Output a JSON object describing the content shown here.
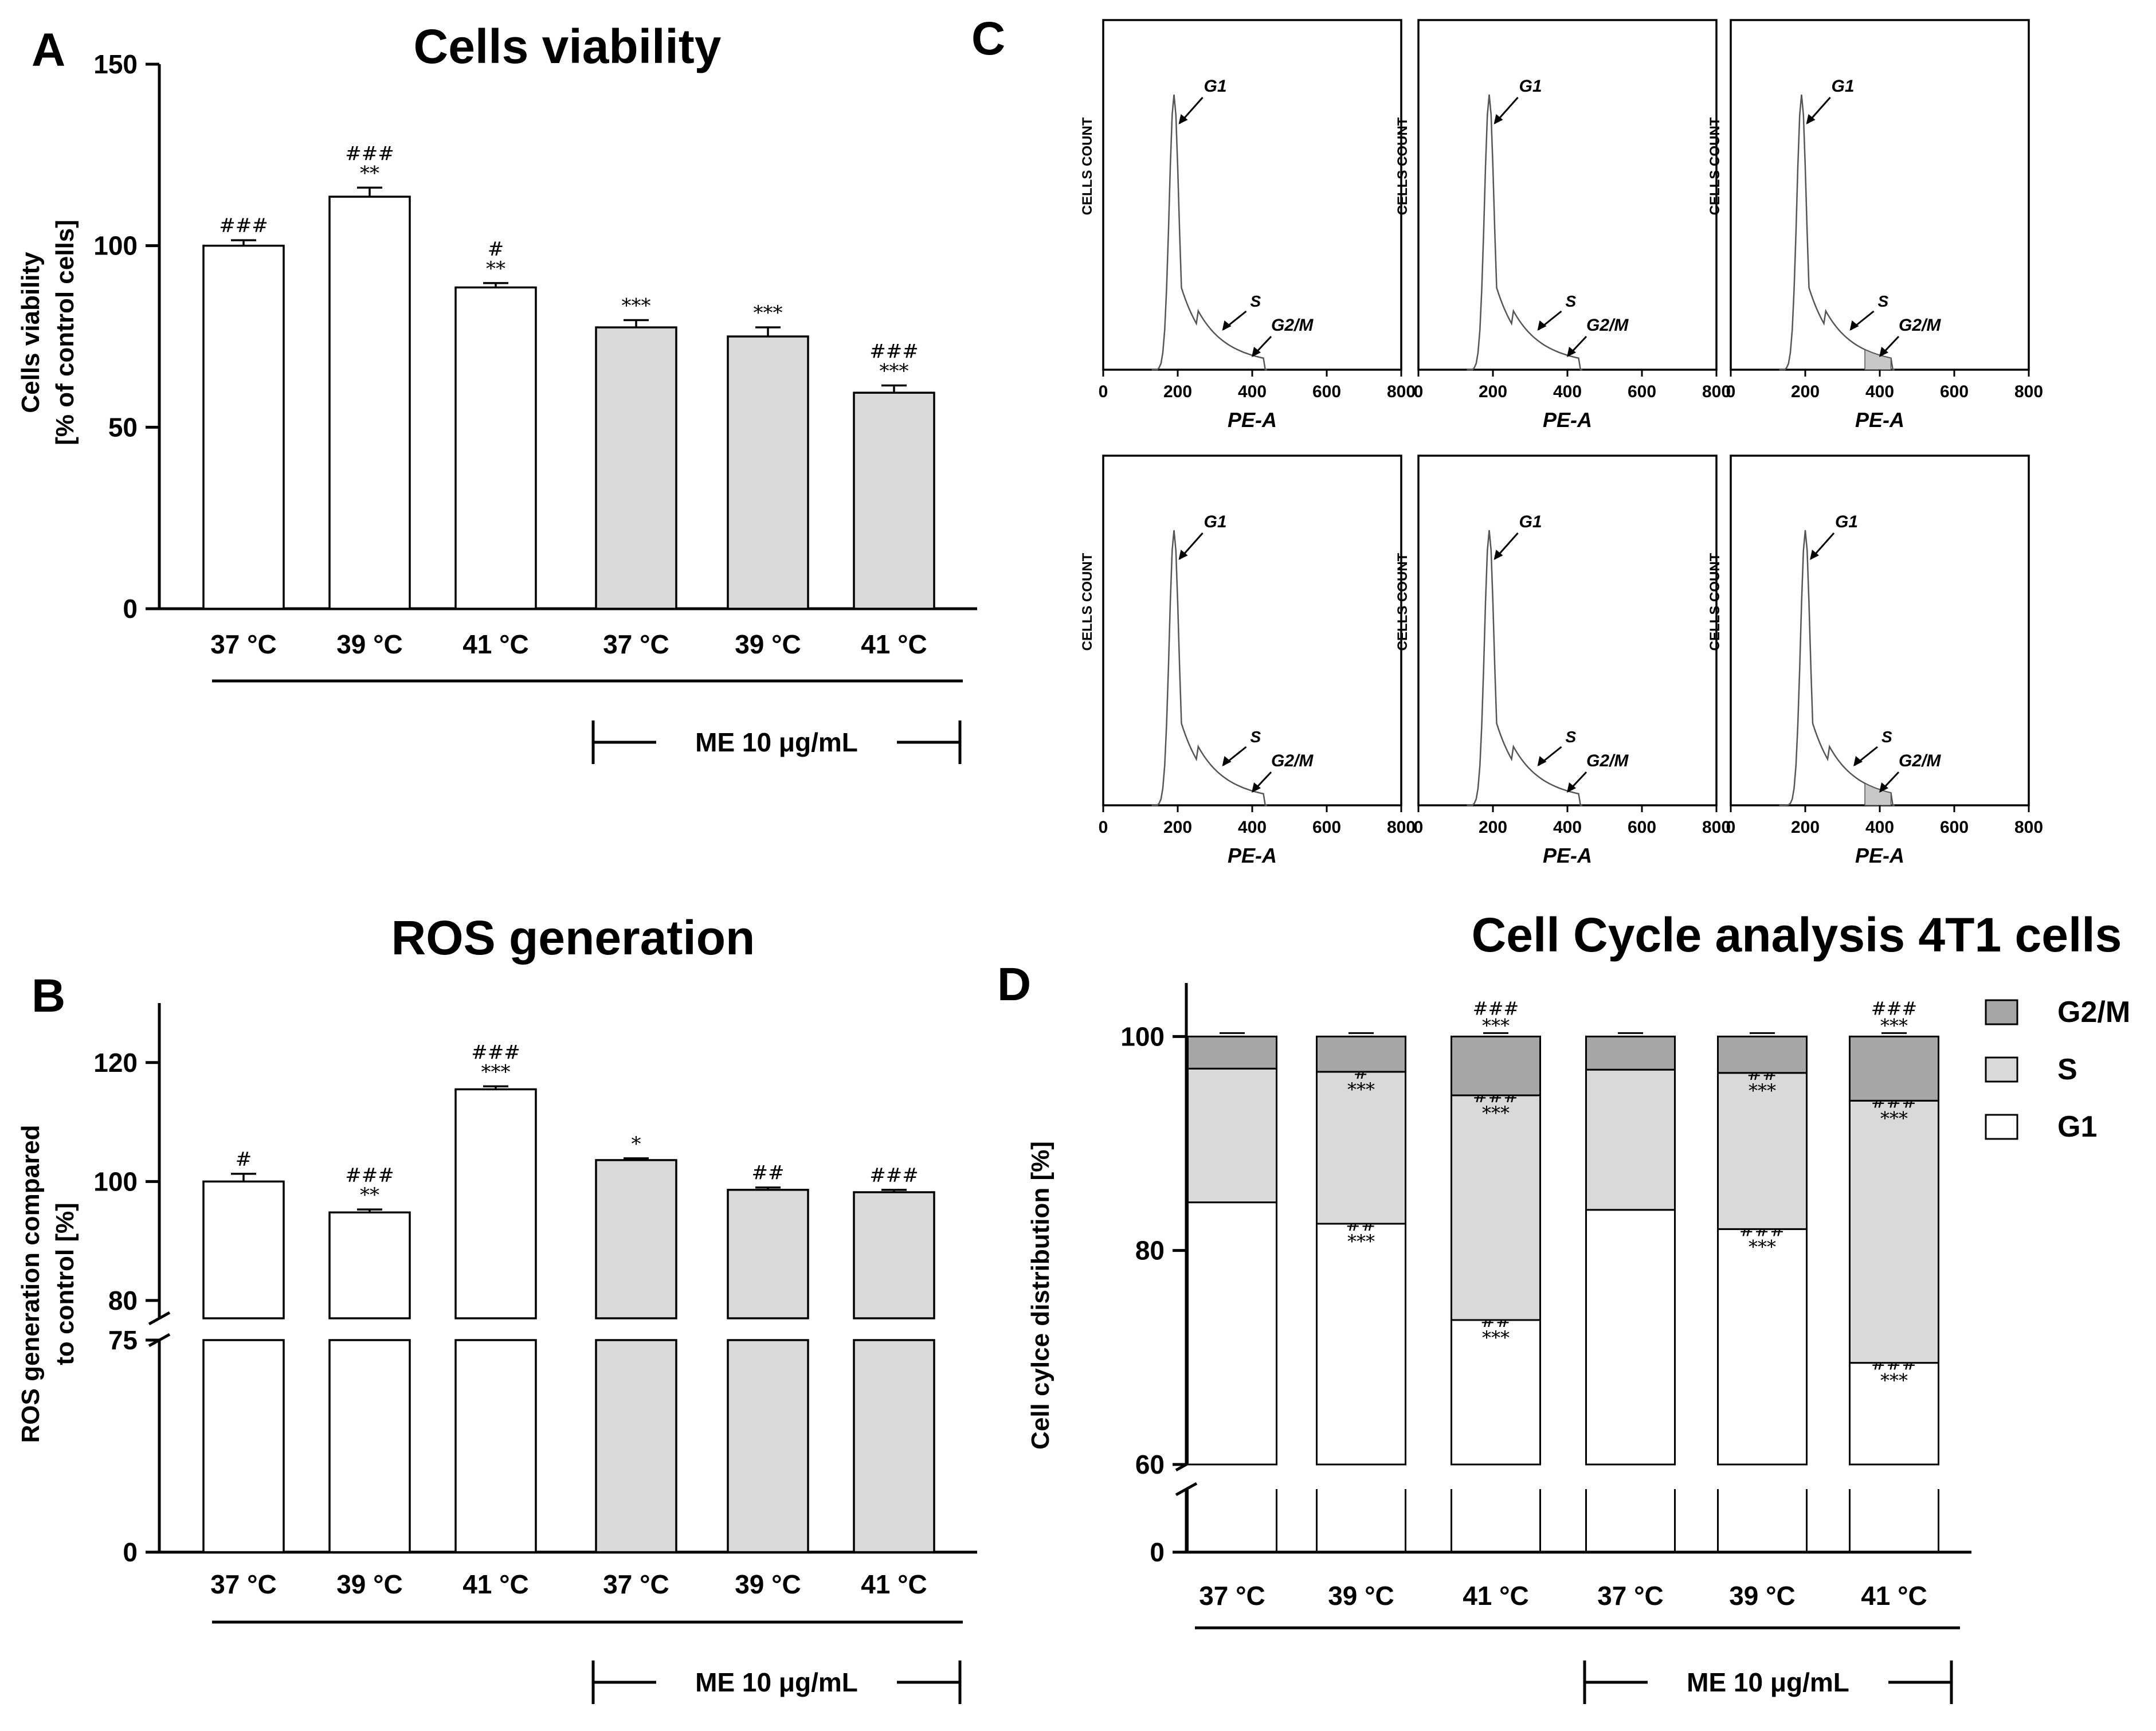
{
  "panels": {
    "A": {
      "label": "A"
    },
    "B": {
      "label": "B"
    },
    "C": {
      "label": "C"
    },
    "D": {
      "label": "D"
    }
  },
  "treatment_label": "ME 10 μg/mL",
  "chart_data": [
    {
      "id": "A",
      "type": "bar",
      "title": "Cells viability",
      "ylabel": [
        "Cells viability",
        "[% of control cells]"
      ],
      "categories": [
        "37 °C",
        "39 °C",
        "41 °C",
        "37 °C",
        "39 °C",
        "41 °C"
      ],
      "values": [
        100,
        113.5,
        88.5,
        77.5,
        75,
        59.5
      ],
      "errors": [
        1.5,
        2.5,
        1.2,
        2,
        2.5,
        2
      ],
      "fill": [
        "#ffffff",
        "#ffffff",
        "#ffffff",
        "#d9d9d9",
        "#d9d9d9",
        "#d9d9d9"
      ],
      "annotations": [
        [
          "###"
        ],
        [
          "###",
          "**"
        ],
        [
          "#",
          "**"
        ],
        [
          "***"
        ],
        [
          "***"
        ],
        [
          "###",
          "***"
        ]
      ],
      "ylim": [
        0,
        150
      ],
      "yticks": [
        0,
        50,
        100,
        150
      ],
      "group_label": "ME 10 μg/mL"
    },
    {
      "id": "B",
      "type": "bar",
      "title": "ROS generation",
      "ylabel": [
        "ROS generation compared",
        "to control [%]"
      ],
      "categories": [
        "37 °C",
        "39 °C",
        "41 °C",
        "37 °C",
        "39 °C",
        "41 °C"
      ],
      "values": [
        100,
        94.8,
        115.5,
        103.6,
        98.6,
        98.2
      ],
      "errors": [
        1.3,
        0.5,
        0.5,
        0.3,
        0.4,
        0.4
      ],
      "fill": [
        "#ffffff",
        "#ffffff",
        "#ffffff",
        "#d9d9d9",
        "#d9d9d9",
        "#d9d9d9"
      ],
      "annotations": [
        [
          "#"
        ],
        [
          "###",
          "**"
        ],
        [
          "###",
          "***"
        ],
        [
          "*"
        ],
        [
          "##"
        ],
        [
          "###"
        ]
      ],
      "ylim": [
        0,
        130
      ],
      "axis_break": [
        75,
        77
      ],
      "yticks": [
        0,
        75,
        80,
        100,
        120
      ],
      "group_label": "ME 10 μg/mL"
    },
    {
      "id": "C",
      "type": "histogram",
      "title": "",
      "xlabel": "PE-A",
      "ylabel": "CELLS COUNT",
      "xticks": [
        0,
        200,
        400,
        600,
        800
      ],
      "peak_labels": [
        "G1",
        "S",
        "G2/M"
      ],
      "panels": [
        {
          "g1_peak": 190,
          "shaded": false
        },
        {
          "g1_peak": 190,
          "shaded": false
        },
        {
          "g1_peak": 190,
          "shaded": true
        },
        {
          "g1_peak": 190,
          "shaded": false
        },
        {
          "g1_peak": 190,
          "shaded": false
        },
        {
          "g1_peak": 200,
          "shaded": true
        }
      ]
    },
    {
      "id": "D",
      "type": "stacked_bar",
      "title": "Cell Cycle analysis 4T1 cells",
      "ylabel": "Cell cylce distribution [%]",
      "categories": [
        "37 °C",
        "39 °C",
        "41 °C",
        "37 °C",
        "39 °C",
        "41 °C"
      ],
      "series": [
        {
          "name": "G1",
          "color": "#ffffff",
          "values": [
            84.5,
            82.5,
            73.5,
            83.8,
            82,
            69.5
          ]
        },
        {
          "name": "S",
          "color": "#d9d9d9",
          "values": [
            12.5,
            14.2,
            21,
            13.1,
            14.6,
            24.5
          ]
        },
        {
          "name": "G2/M",
          "color": "#a6a6a6",
          "values": [
            3,
            3.3,
            5.5,
            3.1,
            3.4,
            6
          ]
        }
      ],
      "annotations": {
        "g1": [
          [],
          [
            "##",
            "***"
          ],
          [
            "##",
            "***"
          ],
          [],
          [
            "###",
            "***"
          ],
          [
            "###",
            "***"
          ]
        ],
        "s": [
          [],
          [
            "#",
            "***"
          ],
          [
            "###",
            "***"
          ],
          [],
          [
            "##",
            "***"
          ],
          [
            "###",
            "***"
          ]
        ],
        "g2m": [
          [],
          [],
          [
            "###",
            "***"
          ],
          [],
          [],
          [
            "###",
            "***"
          ]
        ]
      },
      "ylim": [
        0,
        100
      ],
      "axis_break": [
        2,
        60
      ],
      "yticks": [
        0,
        60,
        80,
        100
      ],
      "legend": [
        "G2/M",
        "S",
        "G1"
      ],
      "group_label": "ME 10 μg/mL"
    }
  ]
}
